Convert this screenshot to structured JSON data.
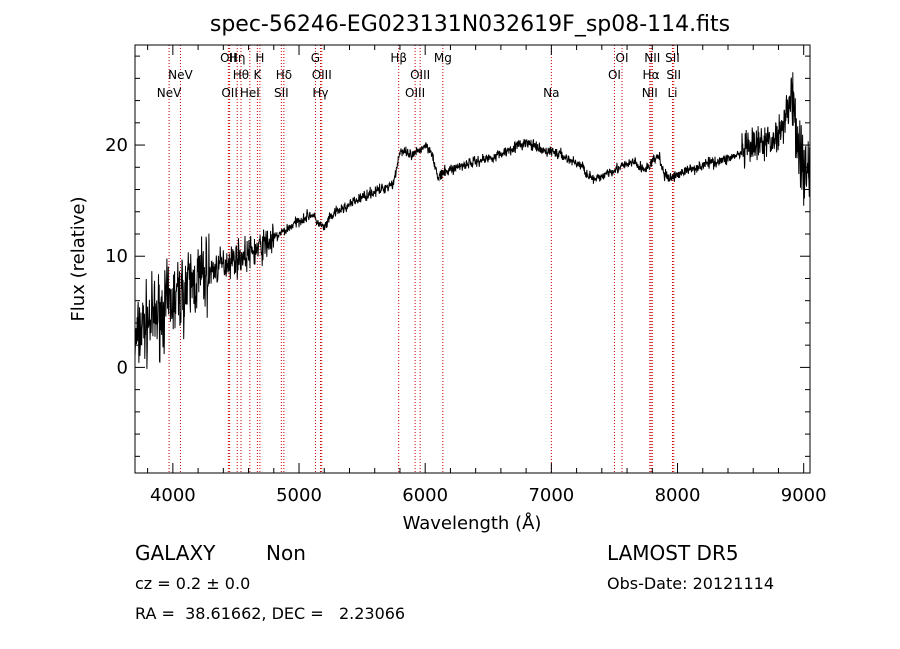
{
  "chart_data": {
    "type": "line",
    "title": "spec-56246-EG023131N032619F_sp08-114.fits",
    "xlabel": "Wavelength (Å)",
    "ylabel": "Flux (relative)",
    "xlim": [
      3700,
      9050
    ],
    "ylim": [
      -9.5,
      29
    ],
    "xticks": [
      4000,
      5000,
      6000,
      7000,
      8000,
      9000
    ],
    "yticks": [
      0,
      10,
      20
    ],
    "grid": false,
    "series": [
      {
        "x": [
          3700,
          3750,
          3800,
          3850,
          3900,
          3950,
          4000,
          4050,
          4100,
          4150,
          4200,
          4250,
          4300,
          4350,
          4400,
          4450,
          4500,
          4550,
          4600,
          4650,
          4700,
          4750,
          4800,
          4850,
          4900,
          4950,
          5000,
          5050,
          5100,
          5150,
          5200,
          5250,
          5300,
          5350,
          5400,
          5450,
          5500,
          5550,
          5600,
          5650,
          5700,
          5750,
          5800,
          5850,
          5900,
          5950,
          6000,
          6050,
          6100,
          6150,
          6200,
          6250,
          6300,
          6350,
          6400,
          6450,
          6500,
          6550,
          6600,
          6650,
          6700,
          6750,
          6800,
          6850,
          6900,
          6950,
          7000,
          7050,
          7100,
          7150,
          7200,
          7250,
          7300,
          7350,
          7400,
          7450,
          7500,
          7550,
          7600,
          7650,
          7700,
          7750,
          7800,
          7850,
          7900,
          7950,
          8000,
          8050,
          8100,
          8150,
          8200,
          8250,
          8300,
          8350,
          8400,
          8450,
          8500,
          8550,
          8600,
          8650,
          8700,
          8750,
          8800,
          8850,
          8900,
          8950,
          9000,
          9050
        ],
        "y": [
          2.0,
          3.5,
          4.0,
          4.5,
          5.0,
          5.5,
          6.0,
          6.5,
          7.0,
          7.5,
          8.0,
          8.3,
          8.6,
          9.0,
          9.3,
          9.6,
          9.8,
          10.0,
          10.2,
          10.5,
          10.8,
          11.2,
          11.6,
          12.0,
          12.4,
          12.8,
          13.2,
          13.5,
          13.8,
          13.0,
          12.5,
          13.5,
          14.0,
          14.3,
          14.6,
          15.0,
          15.3,
          15.6,
          15.8,
          16.0,
          16.3,
          16.6,
          19.5,
          19.2,
          19.0,
          19.5,
          20.0,
          19.5,
          17.0,
          17.5,
          17.8,
          18.0,
          18.2,
          18.4,
          18.5,
          18.7,
          18.8,
          19.0,
          19.2,
          19.5,
          19.8,
          20.0,
          20.2,
          20.0,
          19.6,
          19.4,
          19.5,
          19.2,
          19.0,
          18.6,
          18.4,
          18.0,
          17.2,
          16.8,
          17.2,
          17.6,
          17.8,
          18.0,
          18.2,
          18.5,
          18.0,
          17.8,
          18.5,
          19.0,
          17.2,
          17.0,
          17.4,
          17.6,
          17.8,
          18.0,
          18.2,
          18.4,
          18.5,
          18.6,
          18.8,
          19.0,
          19.2,
          19.5,
          19.8,
          20.0,
          20.2,
          20.5,
          21.0,
          22.5,
          24.5,
          21.0,
          17.0,
          18.0
        ]
      }
    ],
    "lines": [
      {
        "label": "NeV",
        "wl": 3970,
        "row": 2
      },
      {
        "label": "NeV",
        "wl": 4060,
        "row": 1
      },
      {
        "label": "OII",
        "wl": 4440,
        "row": 0
      },
      {
        "label": "OII",
        "wl": 4450,
        "row": 2
      },
      {
        "label": "Hη",
        "wl": 4510,
        "row": 0
      },
      {
        "label": "Hθ",
        "wl": 4540,
        "row": 1
      },
      {
        "label": "HeI",
        "wl": 4610,
        "row": 2
      },
      {
        "label": "H",
        "wl": 4690,
        "row": 0
      },
      {
        "label": "K",
        "wl": 4670,
        "row": 1
      },
      {
        "label": "Hδ",
        "wl": 4880,
        "row": 1
      },
      {
        "label": "SII",
        "wl": 4860,
        "row": 2
      },
      {
        "label": "G",
        "wl": 5130,
        "row": 0
      },
      {
        "label": "OIII",
        "wl": 5180,
        "row": 1
      },
      {
        "label": "Hγ",
        "wl": 5170,
        "row": 2
      },
      {
        "label": "Hβ",
        "wl": 5790,
        "row": 0
      },
      {
        "label": "OIII",
        "wl": 5960,
        "row": 1
      },
      {
        "label": "OIII",
        "wl": 5920,
        "row": 2
      },
      {
        "label": "Mg",
        "wl": 6140,
        "row": 0
      },
      {
        "label": "Na",
        "wl": 7000,
        "row": 2
      },
      {
        "label": "OI",
        "wl": 7560,
        "row": 0
      },
      {
        "label": "OI",
        "wl": 7500,
        "row": 1
      },
      {
        "label": "NII",
        "wl": 7800,
        "row": 0
      },
      {
        "label": "Hα",
        "wl": 7790,
        "row": 1
      },
      {
        "label": "NII",
        "wl": 7780,
        "row": 2
      },
      {
        "label": "SII",
        "wl": 7960,
        "row": 0
      },
      {
        "label": "SII",
        "wl": 7970,
        "row": 1
      },
      {
        "label": "Li",
        "wl": 7960,
        "row": 2
      }
    ],
    "colors": {
      "spectrum": "#000000",
      "lines": "#cc0000"
    }
  },
  "info": {
    "class": "GALAXY",
    "subclass": "Non",
    "survey": "LAMOST DR5",
    "cz": "cz = 0.2 ± 0.0",
    "obs_date": "Obs-Date: 20121114",
    "radec": "RA =  38.61662, DEC =   2.23066"
  }
}
